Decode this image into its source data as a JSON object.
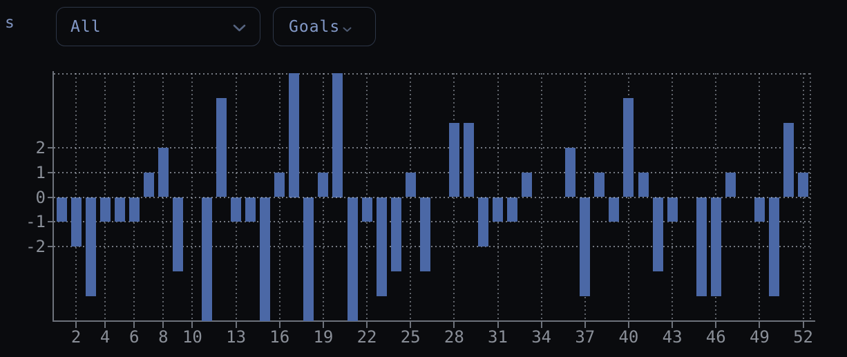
{
  "page": {
    "cropped_left_text": "s",
    "background": "#0a0b0e"
  },
  "toolbar": {
    "filter_select": {
      "value": "All"
    },
    "metric_button": {
      "label": "Goals"
    }
  },
  "chart_data": {
    "type": "bar",
    "title": "",
    "xlabel": "",
    "ylabel": "",
    "x": [
      1,
      2,
      3,
      4,
      5,
      6,
      7,
      8,
      9,
      10,
      11,
      12,
      13,
      14,
      15,
      16,
      17,
      18,
      19,
      20,
      21,
      22,
      23,
      24,
      25,
      26,
      27,
      28,
      29,
      30,
      31,
      32,
      33,
      34,
      35,
      36,
      37,
      38,
      39,
      40,
      41,
      42,
      43,
      44,
      45,
      46,
      47,
      48,
      49,
      50,
      51,
      52
    ],
    "values": [
      -1,
      -2,
      -4,
      -1,
      -1,
      -1,
      1,
      2,
      -3,
      0,
      -5,
      4,
      -1,
      -1,
      -5,
      1,
      5,
      -5,
      1,
      5,
      -5,
      -1,
      -4,
      -3,
      1,
      -3,
      0,
      3,
      3,
      -2,
      -1,
      -1,
      1,
      0,
      0,
      2,
      -4,
      1,
      -1,
      4,
      1,
      -3,
      -1,
      0,
      -4,
      -4,
      1,
      0,
      -1,
      -4,
      3,
      1
    ],
    "xticks": [
      2,
      4,
      6,
      8,
      10,
      13,
      16,
      19,
      22,
      25,
      28,
      31,
      34,
      37,
      40,
      43,
      46,
      49,
      52
    ],
    "yticks": [
      2,
      1,
      0,
      -1,
      -2
    ],
    "ylim": [
      -5,
      5
    ],
    "grid": true,
    "legend": "none",
    "bar_color": "#4b68a6",
    "axis_color": "#6e737c",
    "label_color": "#8a8f98"
  }
}
